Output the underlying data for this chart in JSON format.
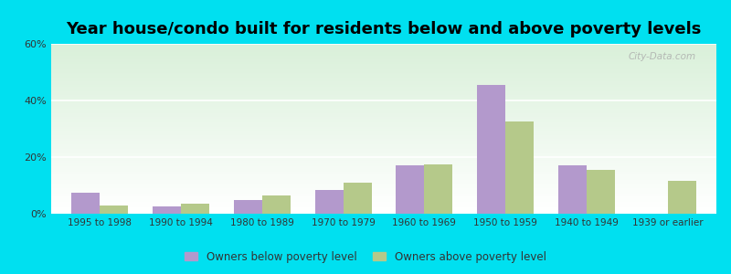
{
  "title": "Year house/condo built for residents below and above poverty levels",
  "categories": [
    "1995 to 1998",
    "1990 to 1994",
    "1980 to 1989",
    "1970 to 1979",
    "1960 to 1969",
    "1950 to 1959",
    "1940 to 1949",
    "1939 or earlier"
  ],
  "below_poverty": [
    7.5,
    2.5,
    5.0,
    8.5,
    17.0,
    45.5,
    17.0,
    0.0
  ],
  "above_poverty": [
    3.0,
    3.5,
    6.5,
    11.0,
    17.5,
    32.5,
    15.5,
    11.5
  ],
  "below_color": "#b399cc",
  "above_color": "#b5c98a",
  "ylim": [
    0,
    60
  ],
  "yticks": [
    0,
    20,
    40,
    60
  ],
  "ytick_labels": [
    "0%",
    "20%",
    "40%",
    "60%"
  ],
  "outer_bg": "#00e0f0",
  "bar_width": 0.35,
  "legend_below_label": "Owners below poverty level",
  "legend_above_label": "Owners above poverty level",
  "watermark": "City-Data.com",
  "title_fontsize": 13,
  "tick_fontsize": 7.5
}
